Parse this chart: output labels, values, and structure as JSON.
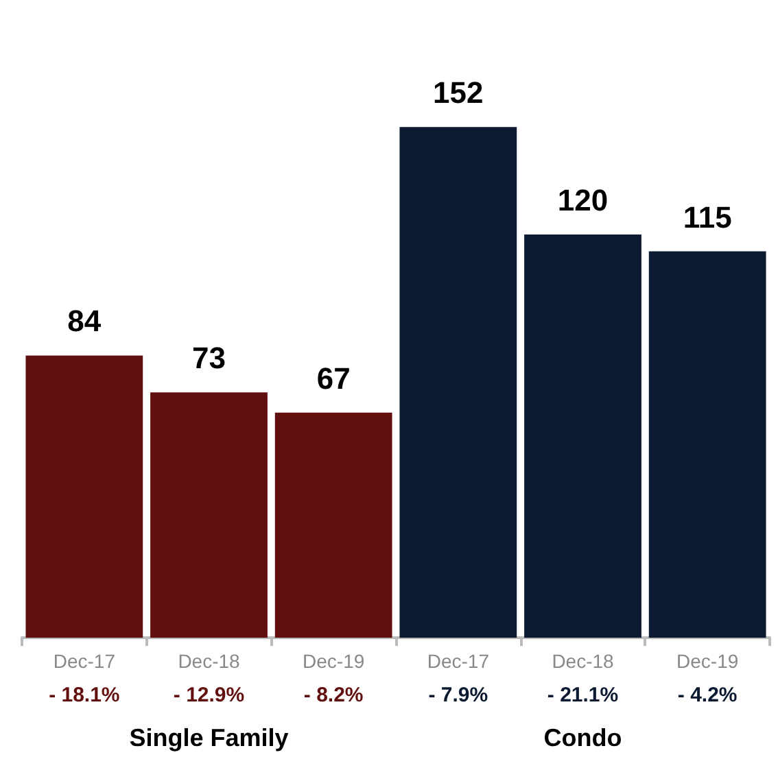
{
  "chart_data": {
    "type": "bar",
    "categories": [
      "Dec-17",
      "Dec-18",
      "Dec-19",
      "Dec-17",
      "Dec-18",
      "Dec-19"
    ],
    "values": [
      84,
      73,
      67,
      152,
      120,
      115
    ],
    "colors": [
      "#62100f",
      "#62100f",
      "#62100f",
      "#0b1a30",
      "#0b1a30",
      "#0b1a30"
    ],
    "data_labels": true,
    "annotations": [
      "- 18.1%",
      "- 12.9%",
      "- 8.2%",
      "- 7.9%",
      "- 21.1%",
      "- 4.2%",
      "Single Family",
      "Condo"
    ]
  }
}
